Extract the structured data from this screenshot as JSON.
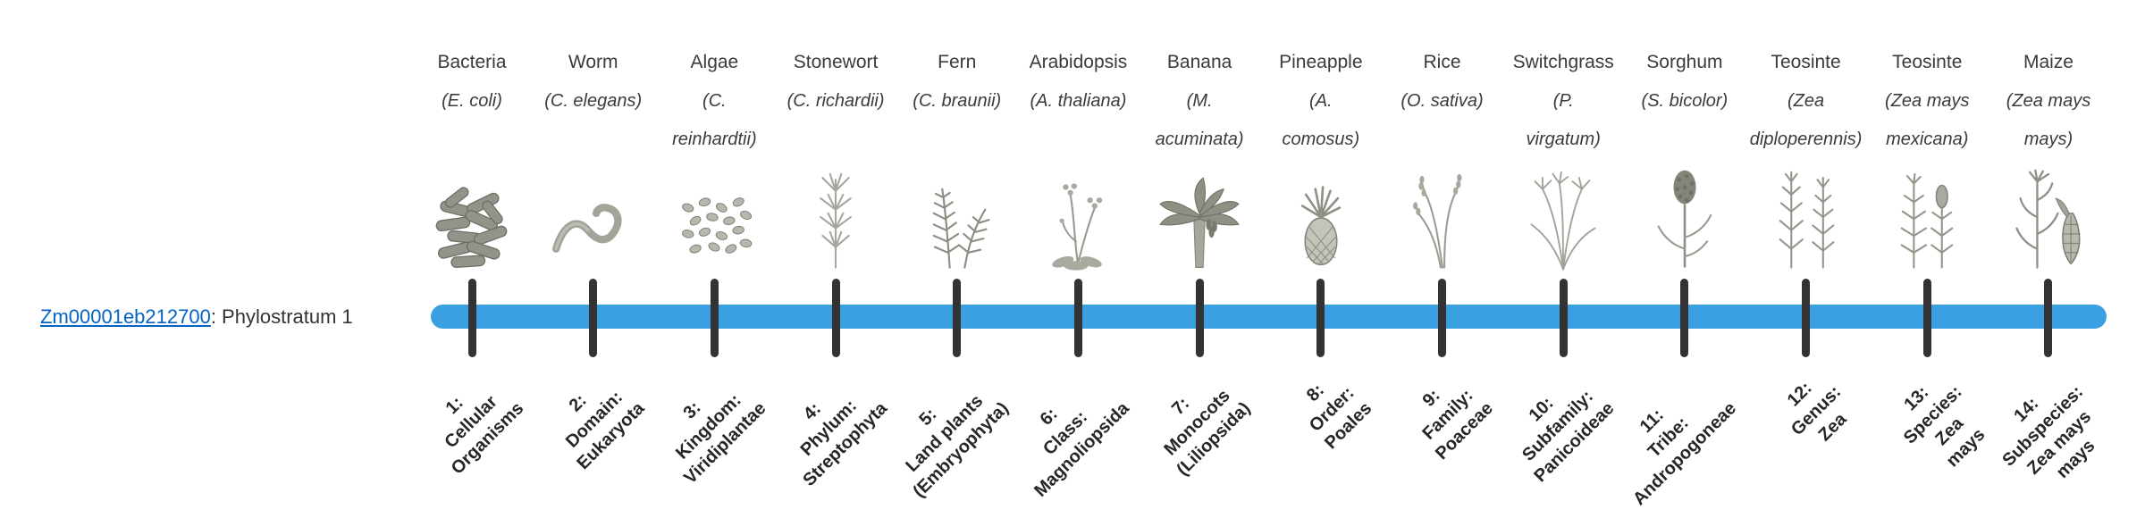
{
  "gene_label": {
    "link_text": "Zm00001eb212700",
    "suffix": ": Phylostratum 1",
    "link_color": "#0563C1",
    "text_color": "#333333"
  },
  "timeline": {
    "bar_color": "#3AA0E1",
    "tick_color": "#333333"
  },
  "columns": [
    {
      "common_name": "Bacteria",
      "scientific_lines": [
        "(E. coli)"
      ],
      "icon": "bacteria-icon",
      "stratum_lines": [
        "1:",
        "Cellular",
        "Organisms"
      ]
    },
    {
      "common_name": "Worm",
      "scientific_lines": [
        "(C. elegans)"
      ],
      "icon": "worm-icon",
      "stratum_lines": [
        "2:",
        "Domain:",
        "Eukaryota"
      ]
    },
    {
      "common_name": "Algae",
      "scientific_lines": [
        "(C.",
        "reinhardtii)"
      ],
      "icon": "algae-icon",
      "stratum_lines": [
        "3:",
        "Kingdom:",
        "Viridiplantae"
      ]
    },
    {
      "common_name": "Stonewort",
      "scientific_lines": [
        "(C. richardii)"
      ],
      "icon": "stonewort-icon",
      "stratum_lines": [
        "4:",
        "Phylum:",
        "Streptophyta"
      ]
    },
    {
      "common_name": "Fern",
      "scientific_lines": [
        "(C. braunii)"
      ],
      "icon": "fern-icon",
      "stratum_lines": [
        "5:",
        "Land plants",
        "(Embryophyta)"
      ]
    },
    {
      "common_name": "Arabidopsis",
      "scientific_lines": [
        "(A. thaliana)"
      ],
      "icon": "arabidopsis-icon",
      "stratum_lines": [
        "6:",
        "Class:",
        "Magnoliopsida"
      ]
    },
    {
      "common_name": "Banana",
      "scientific_lines": [
        "(M.",
        "acuminata)"
      ],
      "icon": "banana-icon",
      "stratum_lines": [
        "7:",
        "Monocots",
        "(Liliopsida)"
      ]
    },
    {
      "common_name": "Pineapple",
      "scientific_lines": [
        "(A.",
        "comosus)"
      ],
      "icon": "pineapple-icon",
      "stratum_lines": [
        "8:",
        "Order:",
        "Poales"
      ]
    },
    {
      "common_name": "Rice",
      "scientific_lines": [
        "(O. sativa)"
      ],
      "icon": "rice-icon",
      "stratum_lines": [
        "9:",
        "Family:",
        "Poaceae"
      ]
    },
    {
      "common_name": "Switchgrass",
      "scientific_lines": [
        "(P.",
        "virgatum)"
      ],
      "icon": "switchgrass-icon",
      "stratum_lines": [
        "10:",
        "Subfamily:",
        "Panicoideae"
      ]
    },
    {
      "common_name": "Sorghum",
      "scientific_lines": [
        "(S. bicolor)"
      ],
      "icon": "sorghum-icon",
      "stratum_lines": [
        "11:",
        "Tribe:",
        "Andropogoneae"
      ]
    },
    {
      "common_name": "Teosinte",
      "scientific_lines": [
        "(Zea",
        "diploperennis)"
      ],
      "icon": "teosinte-diploperennis-icon",
      "stratum_lines": [
        "12:",
        "Genus:",
        "Zea"
      ]
    },
    {
      "common_name": "Teosinte",
      "scientific_lines": [
        "(Zea mays",
        "mexicana)"
      ],
      "icon": "teosinte-mexicana-icon",
      "stratum_lines": [
        "13:",
        "Species:",
        "Zea",
        "mays"
      ]
    },
    {
      "common_name": "Maize",
      "scientific_lines": [
        "(Zea mays",
        "mays)"
      ],
      "icon": "maize-icon",
      "stratum_lines": [
        "14:",
        "Subspecies:",
        "Zea mays",
        "mays"
      ]
    }
  ]
}
